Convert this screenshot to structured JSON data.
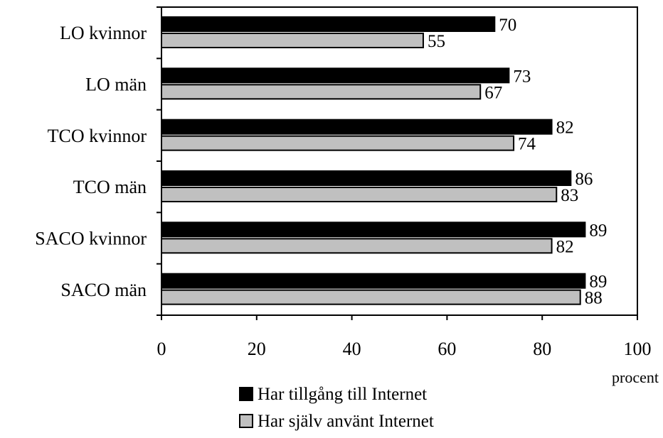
{
  "chart_data": {
    "type": "bar",
    "orientation": "horizontal",
    "categories": [
      "LO kvinnor",
      "LO män",
      "TCO kvinnor",
      "TCO män",
      "SACO kvinnor",
      "SACO män"
    ],
    "series": [
      {
        "name": "Har tillgång till Internet",
        "color": "#000000",
        "values": [
          70,
          73,
          82,
          86,
          89,
          89
        ]
      },
      {
        "name": "Har själv använt Internet",
        "color": "#c0c0c0",
        "values": [
          55,
          67,
          74,
          83,
          82,
          88
        ]
      }
    ],
    "xlim": [
      0,
      100
    ],
    "xticks": [
      0,
      20,
      40,
      60,
      80,
      100
    ],
    "xlabel": "procent",
    "grid": false,
    "legend": "bottom"
  }
}
